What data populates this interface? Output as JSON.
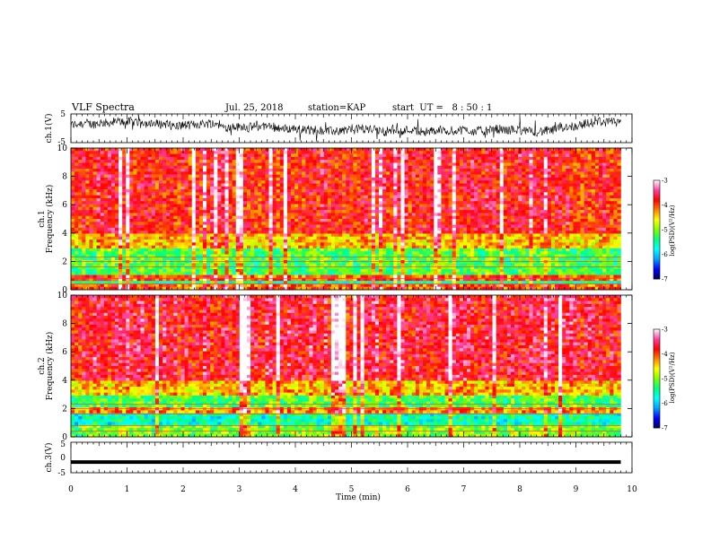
{
  "header": {
    "title": "VLF Spectra",
    "date": "Jul. 25, 2018",
    "station": "station=KAP",
    "start_ut": "start  UT =   8 : 50 : 1"
  },
  "colors": {
    "colormap": [
      "#000060",
      "#0000ff",
      "#00a0ff",
      "#00ffff",
      "#00ff80",
      "#80ff00",
      "#ffff00",
      "#ff8000",
      "#ff0000",
      "#ff40a0",
      "#ffffff"
    ],
    "trace": "#000000"
  },
  "chart_data": [
    {
      "type": "line",
      "name": "ch1-waveform",
      "ylabel": "ch.1(V)",
      "ylim": [
        -5,
        5
      ],
      "yticks": [
        "5",
        "-5"
      ],
      "x_range_min": [
        0,
        9.8
      ],
      "description_values": "noisy waveform oscillating roughly between -3 and +4 V"
    },
    {
      "type": "heatmap",
      "name": "ch1-spectrogram",
      "ylabel": "ch.1\nFrequency (kHz)",
      "ylim": [
        0,
        10
      ],
      "yticks": [
        "0",
        "2",
        "4",
        "6",
        "8",
        "10"
      ],
      "x_range_min": [
        0,
        9.8
      ],
      "colorbar": {
        "label": "log(PSD)(V²/Hz)",
        "range": [
          -7,
          -3
        ],
        "ticks": [
          "-3",
          "-4",
          "-5",
          "-6",
          "-7"
        ]
      },
      "bands": [
        {
          "from_khz": 0,
          "to_khz": 0.5,
          "level": -4.0
        },
        {
          "from_khz": 0.5,
          "to_khz": 0.7,
          "level": -5.5
        },
        {
          "from_khz": 0.7,
          "to_khz": 1.0,
          "level": -4.0
        },
        {
          "from_khz": 1.0,
          "to_khz": 3.0,
          "level": -5.2
        },
        {
          "from_khz": 3.0,
          "to_khz": 4.0,
          "level": -4.4
        },
        {
          "from_khz": 4.0,
          "to_khz": 10.0,
          "level": -3.8
        }
      ]
    },
    {
      "type": "heatmap",
      "name": "ch2-spectrogram",
      "ylabel": "ch.2\nFrequency (kHz)",
      "ylim": [
        0,
        10
      ],
      "yticks": [
        "0",
        "2",
        "4",
        "6",
        "8",
        "10"
      ],
      "x_range_min": [
        0,
        9.8
      ],
      "colorbar": {
        "label": "log(PSD)(V²/Hz)",
        "range": [
          -7,
          -3
        ],
        "ticks": [
          "-3",
          "-4",
          "-5",
          "-6",
          "-7"
        ]
      },
      "bands": [
        {
          "from_khz": 0,
          "to_khz": 0.8,
          "level": -5.0
        },
        {
          "from_khz": 0.8,
          "to_khz": 1.7,
          "level": -5.6
        },
        {
          "from_khz": 1.7,
          "to_khz": 2.0,
          "level": -4.2
        },
        {
          "from_khz": 2.0,
          "to_khz": 3.0,
          "level": -5.2
        },
        {
          "from_khz": 3.0,
          "to_khz": 4.0,
          "level": -4.4
        },
        {
          "from_khz": 4.0,
          "to_khz": 10.0,
          "level": -3.7
        }
      ]
    },
    {
      "type": "line",
      "name": "ch3-waveform",
      "ylabel": "ch.3(V)",
      "ylim": [
        -5,
        5
      ],
      "yticks": [
        "5",
        "0",
        "-5"
      ],
      "x_range_min": [
        0,
        9.8
      ],
      "constant_value": -1.5
    }
  ],
  "x_axis": {
    "label": "Time (min)",
    "range": [
      0,
      10
    ],
    "ticks": [
      "0",
      "1",
      "2",
      "3",
      "4",
      "5",
      "6",
      "7",
      "8",
      "9",
      "10"
    ]
  }
}
